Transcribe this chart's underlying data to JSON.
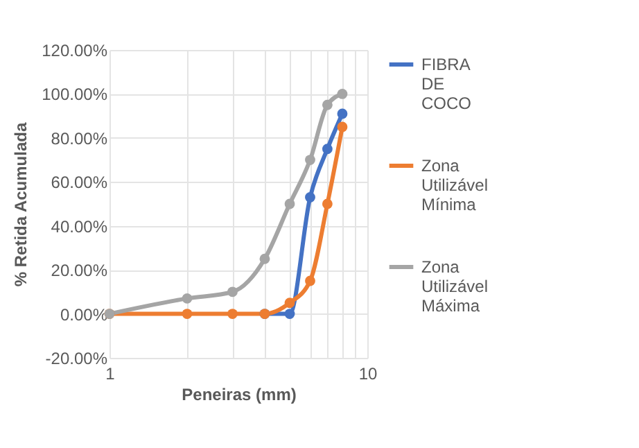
{
  "chart_data": {
    "type": "line",
    "xlabel": "Peneiras (mm)",
    "ylabel": "% Retida Acumulada",
    "x": [
      1,
      2,
      3,
      4,
      5,
      6,
      7,
      8
    ],
    "series": [
      {
        "name": "FIBRA DE COCO",
        "color": "#4472c4",
        "values": [
          null,
          null,
          null,
          0,
          0,
          53,
          75,
          91
        ]
      },
      {
        "name": "Zona Utilizável Mínima",
        "color": "#ed7d31",
        "values": [
          0,
          0,
          0,
          0,
          5,
          15,
          50,
          85
        ]
      },
      {
        "name": "Zona Utilizável Máxima",
        "color": "#a5a5a5",
        "values": [
          0,
          7,
          10,
          25,
          50,
          70,
          95,
          100
        ]
      }
    ],
    "log": "x",
    "xlim": [
      1,
      10
    ],
    "xticks": [
      1,
      {
        "value": 2,
        "label": null
      },
      {
        "value": 3,
        "label": null
      },
      {
        "value": 4,
        "label": null
      },
      {
        "value": 5,
        "label": null
      },
      {
        "value": 6,
        "label": null
      },
      {
        "value": 7,
        "label": null
      },
      {
        "value": 8,
        "label": null
      },
      {
        "value": 9,
        "label": null
      },
      10
    ],
    "ylim": [
      -20,
      120
    ],
    "yticks": [
      {
        "value": -20,
        "label": "-20.00%"
      },
      {
        "value": 0,
        "label": "0.00%"
      },
      {
        "value": 20,
        "label": "20.00%"
      },
      {
        "value": 40,
        "label": "40.00%"
      },
      {
        "value": 60,
        "label": "60.00%"
      },
      {
        "value": 80,
        "label": "80.00%"
      },
      {
        "value": 100,
        "label": "100.00%"
      },
      {
        "value": 120,
        "label": "120.00%"
      }
    ],
    "grid": true,
    "legend": "right",
    "marker": "circle",
    "line_style": "solid"
  }
}
